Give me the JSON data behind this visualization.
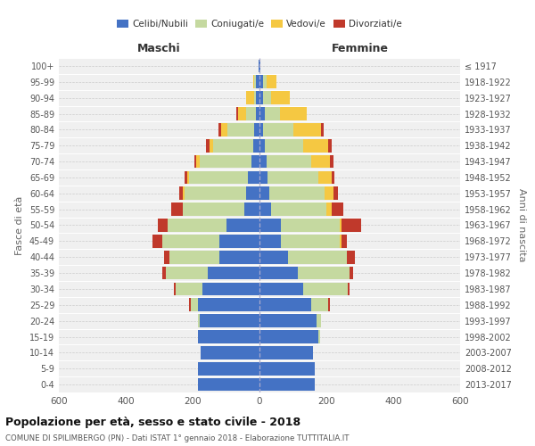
{
  "age_groups": [
    "0-4",
    "5-9",
    "10-14",
    "15-19",
    "20-24",
    "25-29",
    "30-34",
    "35-39",
    "40-44",
    "45-49",
    "50-54",
    "55-59",
    "60-64",
    "65-69",
    "70-74",
    "75-79",
    "80-84",
    "85-89",
    "90-94",
    "95-99",
    "100+"
  ],
  "birth_years": [
    "2013-2017",
    "2008-2012",
    "2003-2007",
    "1998-2002",
    "1993-1997",
    "1988-1992",
    "1983-1987",
    "1978-1982",
    "1973-1977",
    "1968-1972",
    "1963-1967",
    "1958-1962",
    "1953-1957",
    "1948-1952",
    "1943-1947",
    "1938-1942",
    "1933-1937",
    "1928-1932",
    "1923-1927",
    "1918-1922",
    "≤ 1917"
  ],
  "males": {
    "celibi": [
      185,
      185,
      175,
      185,
      180,
      185,
      170,
      155,
      120,
      120,
      100,
      45,
      40,
      35,
      25,
      20,
      15,
      10,
      10,
      10,
      2
    ],
    "coniugati": [
      0,
      0,
      0,
      0,
      5,
      20,
      80,
      125,
      150,
      170,
      175,
      185,
      185,
      175,
      155,
      120,
      80,
      30,
      5,
      5,
      0
    ],
    "vedovi": [
      0,
      0,
      0,
      0,
      0,
      0,
      0,
      0,
      0,
      0,
      0,
      0,
      5,
      5,
      10,
      10,
      20,
      25,
      25,
      5,
      0
    ],
    "divorziati": [
      0,
      0,
      0,
      0,
      0,
      5,
      5,
      10,
      15,
      30,
      30,
      35,
      10,
      10,
      5,
      10,
      8,
      5,
      0,
      0,
      0
    ]
  },
  "females": {
    "nubili": [
      165,
      165,
      160,
      175,
      170,
      155,
      130,
      115,
      85,
      65,
      65,
      35,
      30,
      25,
      20,
      15,
      10,
      15,
      10,
      10,
      2
    ],
    "coniugate": [
      0,
      0,
      0,
      5,
      15,
      50,
      135,
      155,
      175,
      175,
      175,
      165,
      165,
      150,
      135,
      115,
      90,
      45,
      25,
      10,
      0
    ],
    "vedove": [
      0,
      0,
      0,
      0,
      0,
      0,
      0,
      0,
      0,
      5,
      5,
      15,
      25,
      40,
      55,
      75,
      85,
      80,
      55,
      30,
      0
    ],
    "divorziate": [
      0,
      0,
      0,
      0,
      0,
      5,
      5,
      10,
      25,
      15,
      60,
      35,
      15,
      10,
      10,
      10,
      8,
      0,
      0,
      0,
      0
    ]
  },
  "colors": {
    "celibi": "#4472c4",
    "coniugati": "#c5d9a0",
    "vedovi": "#f5c842",
    "divorziati": "#c0392b"
  },
  "xlim": 600,
  "title": "Popolazione per età, sesso e stato civile - 2018",
  "subtitle": "COMUNE DI SPILIMBERGO (PN) - Dati ISTAT 1° gennaio 2018 - Elaborazione TUTTITALIA.IT",
  "ylabel_left": "Fasce di età",
  "ylabel_right": "Anni di nascita",
  "xlabel_left": "Maschi",
  "xlabel_right": "Femmine",
  "bg_color": "#f0f0f0",
  "fig_color": "#ffffff"
}
